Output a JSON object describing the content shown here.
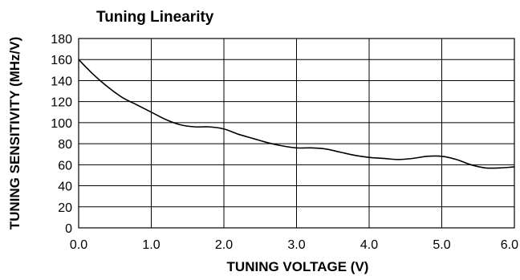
{
  "chart_data": {
    "type": "line",
    "title": "Tuning Linearity",
    "xlabel": "TUNING VOLTAGE (V)",
    "ylabel": "TUNING SENSITIVITY (MHz/V)",
    "xlim": [
      0,
      6
    ],
    "ylim": [
      0,
      180
    ],
    "x_ticks": [
      "0.0",
      "1.0",
      "2.0",
      "3.0",
      "4.0",
      "5.0",
      "6.0"
    ],
    "y_ticks": [
      "0",
      "20",
      "40",
      "60",
      "80",
      "100",
      "120",
      "140",
      "160",
      "180"
    ],
    "grid": true,
    "legend": "none",
    "series": [
      {
        "color": "#000000",
        "x": [
          0.0,
          0.2,
          0.4,
          0.6,
          0.8,
          1.0,
          1.2,
          1.4,
          1.6,
          1.8,
          2.0,
          2.2,
          2.4,
          2.6,
          2.8,
          3.0,
          3.2,
          3.4,
          3.6,
          3.8,
          4.0,
          4.2,
          4.4,
          4.6,
          4.8,
          5.0,
          5.2,
          5.4,
          5.6,
          5.8,
          6.0
        ],
        "y": [
          160,
          146,
          134,
          124,
          117,
          110,
          103,
          98,
          96,
          96,
          94,
          89,
          85,
          81,
          78,
          76,
          76,
          75,
          72,
          69,
          67,
          66,
          65,
          66,
          68,
          68,
          65,
          60,
          57,
          57,
          58
        ]
      }
    ]
  }
}
